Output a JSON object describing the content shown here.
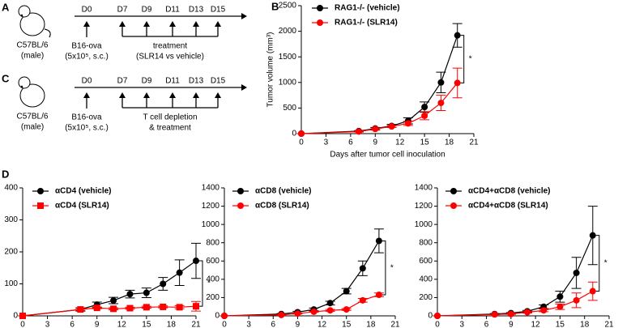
{
  "chart_data": [
    {
      "type": "line",
      "ylabel": "Tumor volume (mm³)",
      "xlabel": "Days after tumor cell inoculation",
      "x": [
        0,
        7,
        9,
        11,
        13,
        15,
        17,
        19
      ],
      "series": [
        {
          "name": "RAG1-/- (vehicle)",
          "color": "#000000",
          "marker": "circle",
          "values": [
            0,
            50,
            100,
            150,
            250,
            520,
            1000,
            1920
          ],
          "errors": [
            0,
            10,
            20,
            30,
            60,
            100,
            200,
            230
          ]
        },
        {
          "name": "RAG1-/- (SLR14)",
          "color": "#ff0000",
          "marker": "circle",
          "values": [
            0,
            40,
            90,
            140,
            200,
            350,
            600,
            990
          ],
          "errors": [
            0,
            10,
            20,
            20,
            40,
            80,
            150,
            290
          ]
        }
      ],
      "xlim": [
        0,
        21
      ],
      "xticks": [
        0,
        3,
        6,
        9,
        12,
        15,
        18,
        21
      ],
      "ylim": [
        0,
        2500
      ],
      "yticks": [
        0,
        500,
        1000,
        1500,
        2000,
        2500
      ],
      "annotation": "*"
    },
    {
      "type": "line",
      "x": [
        0,
        7,
        9,
        11,
        13,
        15,
        17,
        19,
        21
      ],
      "series": [
        {
          "name": "αCD4 (vehicle)",
          "color": "#000000",
          "marker": "circle",
          "values": [
            0,
            20,
            35,
            48,
            68,
            72,
            100,
            135,
            172
          ],
          "errors": [
            0,
            5,
            8,
            10,
            12,
            15,
            20,
            40,
            55
          ]
        },
        {
          "name": "αCD4 (SLR14)",
          "color": "#ff0000",
          "marker": "square",
          "values": [
            0,
            20,
            25,
            22,
            24,
            27,
            28,
            27,
            30
          ],
          "errors": [
            0,
            3,
            3,
            3,
            3,
            3,
            3,
            5,
            15
          ]
        }
      ],
      "xlim": [
        0,
        21
      ],
      "xticks": [
        0,
        3,
        6,
        9,
        12,
        15,
        18,
        21
      ],
      "ylim": [
        0,
        400
      ],
      "yticks": [
        0,
        100,
        200,
        300,
        400
      ],
      "annotation": "*"
    },
    {
      "type": "line",
      "x": [
        0,
        7,
        9,
        11,
        13,
        15,
        17,
        19
      ],
      "series": [
        {
          "name": "αCD8 (vehicle)",
          "color": "#000000",
          "marker": "circle",
          "values": [
            0,
            20,
            40,
            70,
            140,
            270,
            520,
            820
          ],
          "errors": [
            0,
            5,
            10,
            15,
            20,
            30,
            80,
            130
          ]
        },
        {
          "name": "αCD8 (SLR14)",
          "color": "#ff0000",
          "marker": "circle",
          "values": [
            0,
            10,
            25,
            45,
            60,
            70,
            170,
            230
          ],
          "errors": [
            0,
            5,
            5,
            5,
            10,
            10,
            20,
            20
          ]
        }
      ],
      "xlim": [
        0,
        21
      ],
      "xticks": [
        0,
        3,
        6,
        9,
        12,
        15,
        18,
        21
      ],
      "ylim": [
        0,
        1400
      ],
      "yticks": [
        0,
        200,
        400,
        600,
        800,
        1000,
        1200,
        1400
      ],
      "annotation": "*"
    },
    {
      "type": "line",
      "x": [
        0,
        7,
        9,
        11,
        13,
        15,
        17,
        19
      ],
      "series": [
        {
          "name": "αCD4+αCD8 (vehicle)",
          "color": "#000000",
          "marker": "circle",
          "values": [
            0,
            20,
            30,
            50,
            100,
            210,
            470,
            880
          ],
          "errors": [
            0,
            5,
            5,
            10,
            20,
            60,
            170,
            320
          ]
        },
        {
          "name": "αCD4+αCD8 (SLR14)",
          "color": "#ff0000",
          "marker": "circle",
          "values": [
            0,
            15,
            20,
            40,
            60,
            100,
            170,
            270
          ],
          "errors": [
            0,
            3,
            5,
            10,
            15,
            30,
            80,
            100
          ]
        }
      ],
      "xlim": [
        0,
        21
      ],
      "xticks": [
        0,
        3,
        6,
        9,
        12,
        15,
        18,
        21
      ],
      "ylim": [
        0,
        1400
      ],
      "yticks": [
        0,
        200,
        400,
        600,
        800,
        1000,
        1200,
        1400
      ],
      "annotation": "*"
    }
  ],
  "panel_labels": [
    "B",
    "D"
  ],
  "schematics": [
    {
      "label": "A",
      "strain": "C57BL/6",
      "sex": "(male)",
      "inoculation_day": "D0",
      "tumor": "B16-ova",
      "dose": "(5x10⁵, s.c.)",
      "days": [
        "D7",
        "D9",
        "D11",
        "D13",
        "D15"
      ],
      "treatment": [
        "treatment",
        "(SLR14 vs vehicle)"
      ]
    },
    {
      "label": "C",
      "strain": "C57BL/6",
      "sex": "(male)",
      "inoculation_day": "D0",
      "tumor": "B16-ova",
      "dose": "(5x10⁵, s.c.)",
      "days": [
        "D7",
        "D9",
        "D11",
        "D13",
        "D15"
      ],
      "treatment": [
        "T cell depletion",
        "& treatment"
      ]
    }
  ]
}
